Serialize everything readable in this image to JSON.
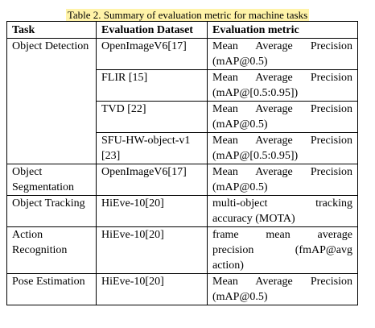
{
  "caption": "Table 2. Summary of evaluation metric for machine tasks",
  "headers": {
    "task": "Task",
    "dataset": "Evaluation Dataset",
    "metric": "Evaluation metric"
  },
  "rows": [
    {
      "task": "Object Detection",
      "entries": [
        {
          "dataset": "OpenImageV6[17]",
          "metric_l1": "Mean Average Precision",
          "metric_l2": "(mAP@0.5)"
        },
        {
          "dataset": "FLIR [15]",
          "metric_l1": "Mean Average Precision",
          "metric_l2": "(mAP@[0.5:0.95])"
        },
        {
          "dataset": "TVD [22]",
          "metric_l1": "Mean Average Precision",
          "metric_l2": "(mAP@0.5)"
        },
        {
          "dataset": "SFU-HW-object-v1 [23]",
          "metric_l1": "Mean Average Precision",
          "metric_l2": "(mAP@[0.5:0.95])"
        }
      ]
    },
    {
      "task": "Object Segmentation",
      "entries": [
        {
          "dataset": "OpenImageV6[17]",
          "metric_l1": "Mean Average Precision",
          "metric_l2": "(mAP@0.5)"
        }
      ]
    },
    {
      "task": "Object Tracking",
      "entries": [
        {
          "dataset": "HiEve-10[20]",
          "metric_l1": "multi-object tracking",
          "metric_l2": "accuracy (MOTA)"
        }
      ]
    },
    {
      "task": "Action Recognition",
      "entries": [
        {
          "dataset": "HiEve-10[20]",
          "metric_l1": "frame mean average",
          "metric_l2": "precision (fmAP@avg",
          "metric_l3": "action)"
        }
      ]
    },
    {
      "task": "Pose Estimation",
      "entries": [
        {
          "dataset": "HiEve-10[20]",
          "metric_l1": "Mean Average Precision",
          "metric_l2": "(mAP@0.5)"
        }
      ]
    }
  ]
}
